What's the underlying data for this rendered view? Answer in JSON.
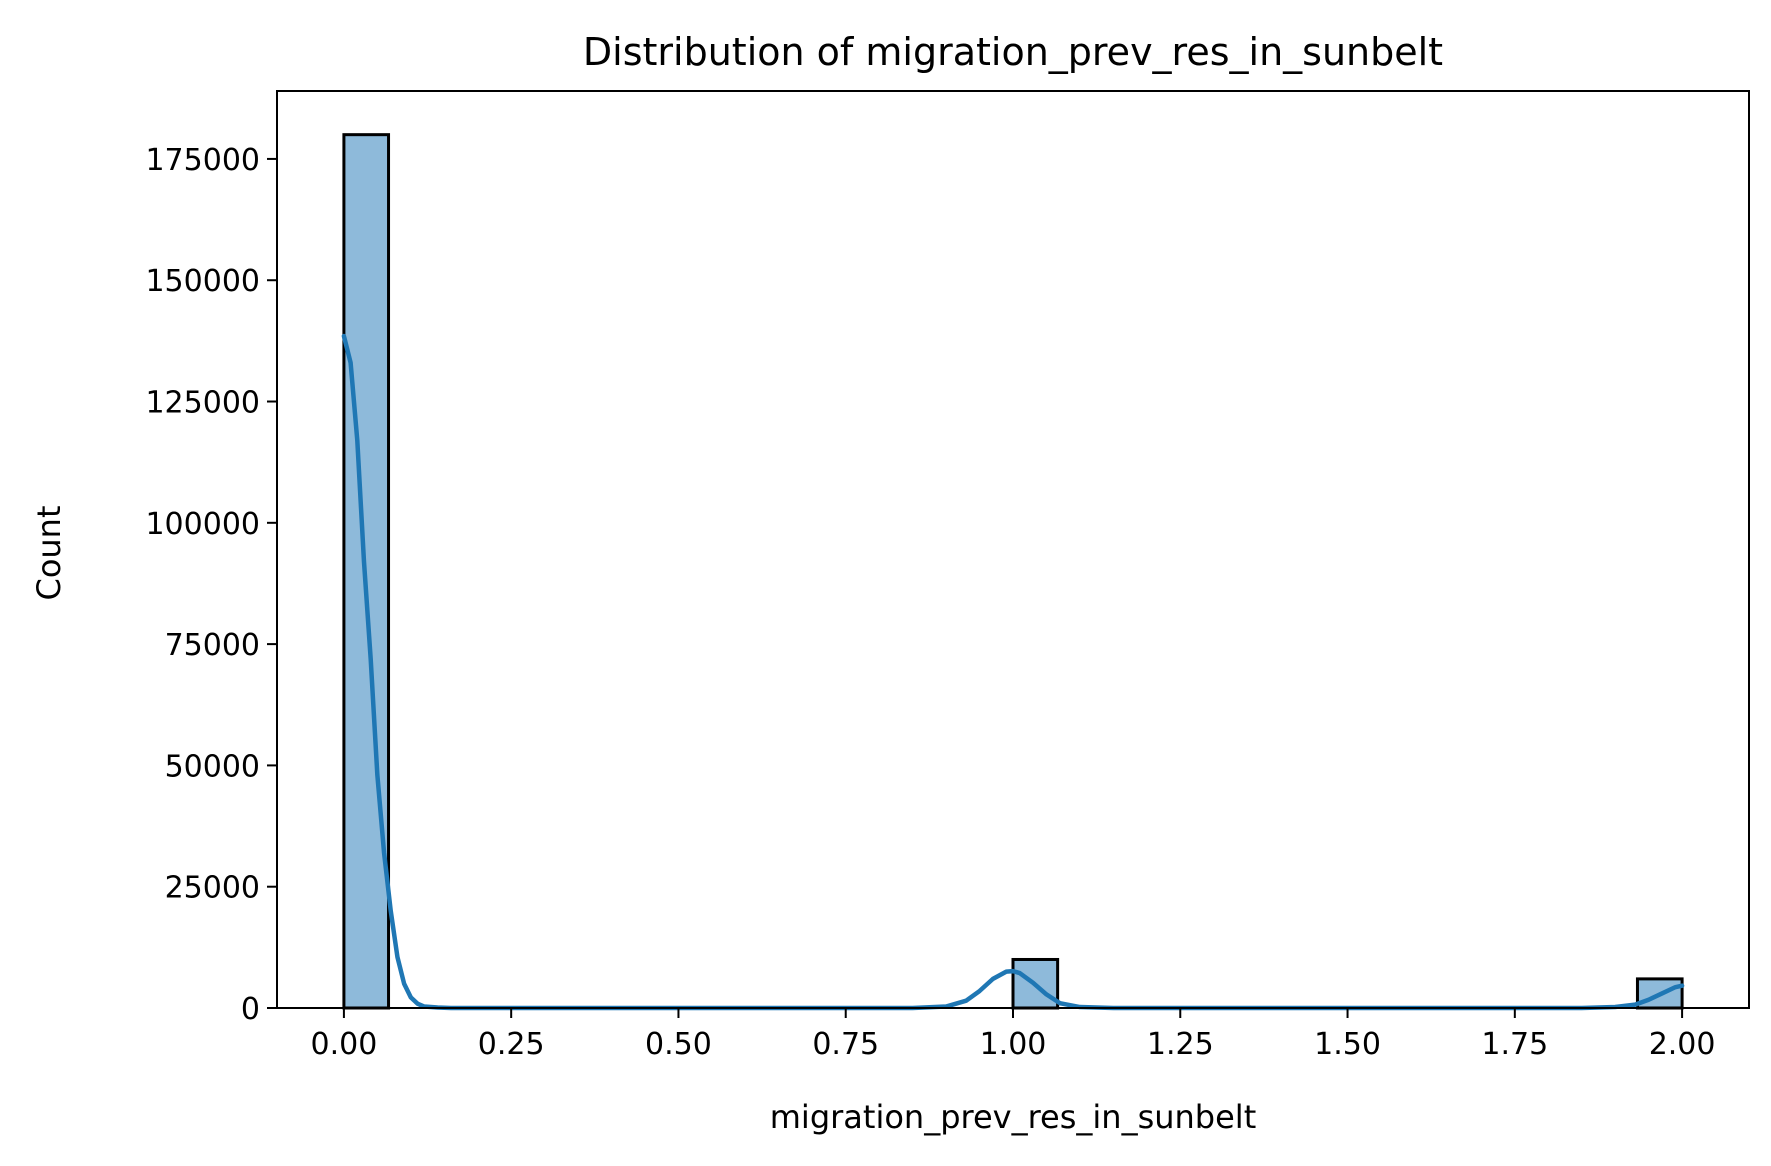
{
  "chart_data": {
    "type": "bar",
    "title": "Distribution of migration_prev_res_in_sunbelt",
    "xlabel": "migration_prev_res_in_sunbelt",
    "ylabel": "Count",
    "xlim": [
      -0.1,
      2.1
    ],
    "ylim": [
      0,
      189000
    ],
    "x_ticks": [
      0.0,
      0.25,
      0.5,
      0.75,
      1.0,
      1.25,
      1.5,
      1.75,
      2.0
    ],
    "x_tick_labels": [
      "0.00",
      "0.25",
      "0.50",
      "0.75",
      "1.00",
      "1.25",
      "1.50",
      "1.75",
      "2.00"
    ],
    "y_ticks": [
      0,
      25000,
      50000,
      75000,
      100000,
      125000,
      150000,
      175000
    ],
    "y_tick_labels": [
      "0",
      "25000",
      "50000",
      "75000",
      "100000",
      "125000",
      "150000",
      "175000"
    ],
    "bars": [
      {
        "x0": 0.0,
        "x1": 0.0667,
        "value": 180000
      },
      {
        "x0": 1.0,
        "x1": 1.0667,
        "value": 10000
      },
      {
        "x0": 1.9333,
        "x1": 2.0,
        "value": 6000
      }
    ],
    "kde": {
      "x": [
        0.0,
        0.01,
        0.02,
        0.03,
        0.04,
        0.05,
        0.06,
        0.07,
        0.08,
        0.09,
        0.1,
        0.11,
        0.12,
        0.14,
        0.16,
        0.2,
        0.5,
        0.85,
        0.9,
        0.93,
        0.95,
        0.97,
        0.99,
        1.0,
        1.01,
        1.03,
        1.05,
        1.07,
        1.1,
        1.15,
        1.5,
        1.85,
        1.9,
        1.93,
        1.95,
        1.97,
        1.99,
        2.0
      ],
      "y": [
        138500,
        133000,
        117000,
        92000,
        72000,
        48000,
        32000,
        20000,
        10500,
        5000,
        2200,
        900,
        300,
        100,
        0,
        0,
        0,
        0,
        300,
        1500,
        3500,
        6000,
        7500,
        7600,
        7200,
        5200,
        2800,
        1000,
        200,
        0,
        0,
        0,
        200,
        700,
        1700,
        3000,
        4300,
        4600
      ]
    },
    "colors": {
      "bar_fill": "#8ebada",
      "bar_edge": "#000000",
      "kde_line": "#1f77b4"
    },
    "grid": false,
    "legend": "none"
  }
}
